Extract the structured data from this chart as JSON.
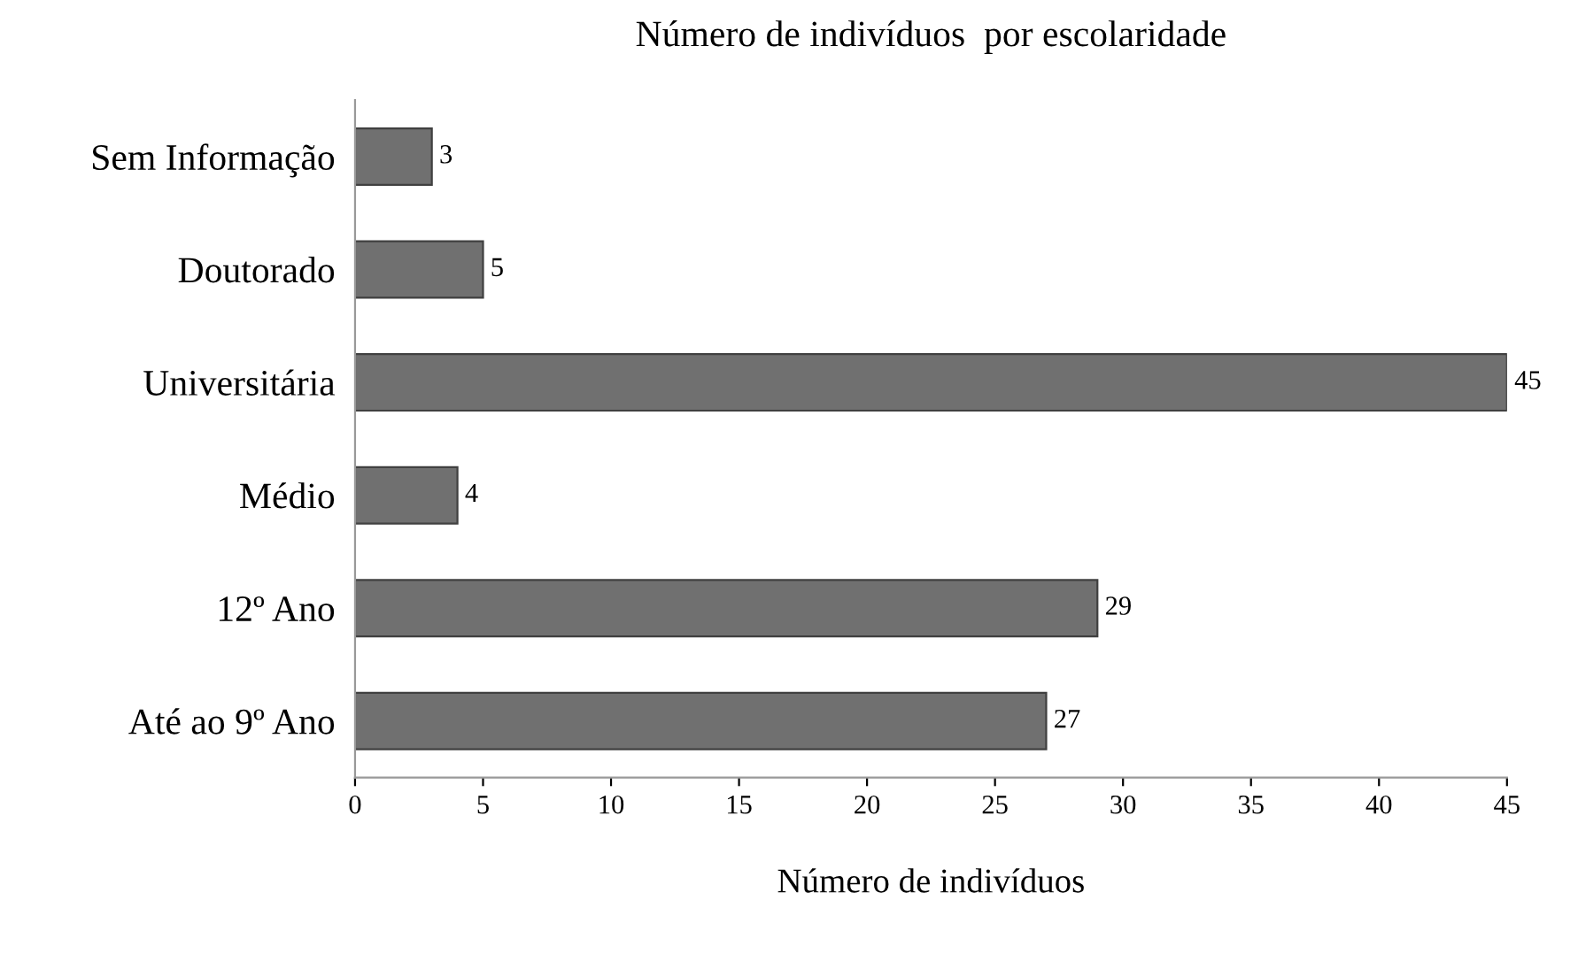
{
  "chart_data": {
    "type": "bar",
    "orientation": "horizontal",
    "title": "Número de indivíduos  por escolaridade",
    "xlabel": "Número de indivíduos",
    "categories": [
      "Sem Informação",
      "Doutorado",
      "Universitária",
      "Médio",
      "12º Ano",
      "Até ao 9º Ano"
    ],
    "values": [
      3,
      5,
      45,
      4,
      29,
      27
    ],
    "color": "#707070",
    "data_labels": true,
    "xlim": [
      0,
      45
    ],
    "xticks": [
      0,
      5,
      10,
      15,
      20,
      25,
      30,
      35,
      40,
      45
    ],
    "grid": false
  }
}
